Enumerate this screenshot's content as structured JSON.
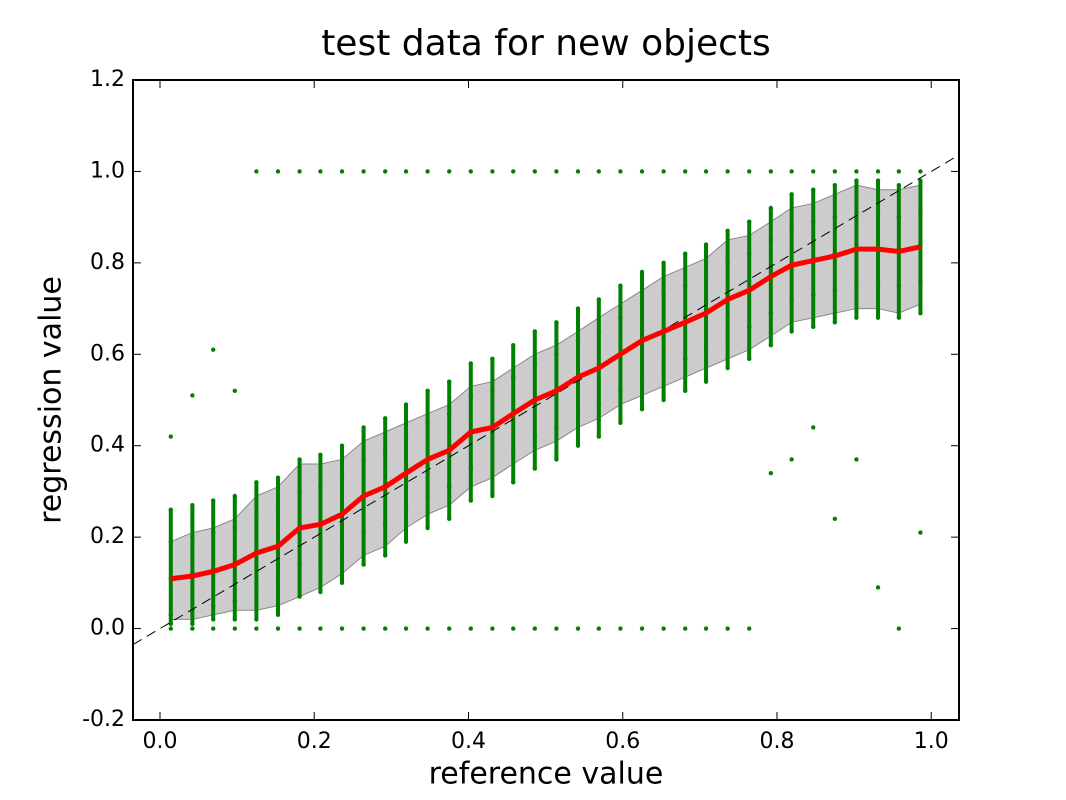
{
  "chart_data": {
    "type": "scatter",
    "title": "test data for new objects",
    "x_label": "reference value",
    "y_label": "regression value",
    "xlim": [
      -0.035,
      1.036
    ],
    "ylim": [
      -0.2,
      1.2
    ],
    "xticks": [
      {
        "value": 0.0,
        "label": "0.0"
      },
      0.2,
      0.4,
      0.6,
      0.8,
      {
        "value": 1.0,
        "label": "1.0"
      }
    ],
    "yticks": [
      -0.2,
      {
        "value": 0.0,
        "label": "0.0"
      },
      0.2,
      0.4,
      0.6,
      0.8,
      {
        "value": 1.0,
        "label": "1.0"
      },
      1.2
    ],
    "point_color": "#008000",
    "mean_color": "#ff0000",
    "band_color": "#cccccc",
    "columns": [
      {
        "x": 0.014,
        "y": [
          0,
          0.01,
          0.03,
          0.11,
          0.19,
          0.26,
          0.42
        ]
      },
      {
        "x": 0.042,
        "y": [
          0,
          0.01,
          0.04,
          0.12,
          0.2,
          0.27,
          0.51
        ]
      },
      {
        "x": 0.069,
        "y": [
          0,
          0.02,
          0.05,
          0.13,
          0.21,
          0.28,
          0.61
        ]
      },
      {
        "x": 0.097,
        "y": [
          0,
          0.02,
          0.06,
          0.14,
          0.22,
          0.29,
          0.52
        ]
      },
      {
        "x": 0.125,
        "y": [
          0,
          0.02,
          0.09,
          0.17,
          0.25,
          0.32,
          1.0
        ]
      },
      {
        "x": 0.153,
        "y": [
          0,
          0.03,
          0.1,
          0.18,
          0.26,
          0.33,
          1.0
        ]
      },
      {
        "x": 0.181,
        "y": [
          0,
          0.07,
          0.14,
          0.22,
          0.3,
          0.37,
          1.0
        ]
      },
      {
        "x": 0.208,
        "y": [
          0,
          0.08,
          0.15,
          0.23,
          0.31,
          0.38,
          1.0
        ]
      },
      {
        "x": 0.236,
        "y": [
          0,
          0.1,
          0.17,
          0.25,
          0.33,
          0.4,
          1.0
        ]
      },
      {
        "x": 0.264,
        "y": [
          0,
          0.14,
          0.21,
          0.29,
          0.37,
          0.44,
          1.0
        ]
      },
      {
        "x": 0.292,
        "y": [
          0,
          0.16,
          0.23,
          0.31,
          0.39,
          0.46,
          1.0
        ]
      },
      {
        "x": 0.319,
        "y": [
          0,
          0.19,
          0.26,
          0.34,
          0.42,
          0.49,
          1.0
        ]
      },
      {
        "x": 0.347,
        "y": [
          0,
          0.22,
          0.29,
          0.37,
          0.45,
          0.52,
          1.0
        ]
      },
      {
        "x": 0.375,
        "y": [
          0,
          0.24,
          0.31,
          0.39,
          0.47,
          0.54,
          1.0
        ]
      },
      {
        "x": 0.403,
        "y": [
          0,
          0.28,
          0.35,
          0.43,
          0.51,
          0.58,
          1.0
        ]
      },
      {
        "x": 0.431,
        "y": [
          0,
          0.29,
          0.36,
          0.44,
          0.52,
          0.59,
          1.0
        ]
      },
      {
        "x": 0.458,
        "y": [
          0,
          0.32,
          0.39,
          0.47,
          0.55,
          0.62,
          1.0
        ]
      },
      {
        "x": 0.486,
        "y": [
          0,
          0.35,
          0.42,
          0.5,
          0.58,
          0.65,
          1.0
        ]
      },
      {
        "x": 0.514,
        "y": [
          0,
          0.37,
          0.44,
          0.52,
          0.6,
          0.67,
          1.0
        ]
      },
      {
        "x": 0.542,
        "y": [
          0,
          0.4,
          0.47,
          0.55,
          0.63,
          0.7,
          1.0
        ]
      },
      {
        "x": 0.569,
        "y": [
          0,
          0.42,
          0.49,
          0.57,
          0.65,
          0.72,
          1.0
        ]
      },
      {
        "x": 0.597,
        "y": [
          0,
          0.45,
          0.52,
          0.6,
          0.68,
          0.75,
          1.0
        ]
      },
      {
        "x": 0.625,
        "y": [
          0,
          0.48,
          0.55,
          0.63,
          0.71,
          0.78,
          1.0
        ]
      },
      {
        "x": 0.653,
        "y": [
          0,
          0.5,
          0.57,
          0.65,
          0.73,
          0.8,
          1.0
        ]
      },
      {
        "x": 0.681,
        "y": [
          0,
          0.52,
          0.59,
          0.67,
          0.75,
          0.82,
          1.0
        ]
      },
      {
        "x": 0.708,
        "y": [
          0,
          0.54,
          0.61,
          0.69,
          0.77,
          0.84,
          1.0
        ]
      },
      {
        "x": 0.736,
        "y": [
          0,
          0.57,
          0.64,
          0.72,
          0.8,
          0.87,
          1.0
        ]
      },
      {
        "x": 0.764,
        "y": [
          0,
          0.59,
          0.66,
          0.74,
          0.82,
          0.89,
          1.0
        ]
      },
      {
        "x": 0.792,
        "y": [
          0.34,
          0.62,
          0.69,
          0.77,
          0.85,
          0.92,
          1.0
        ]
      },
      {
        "x": 0.819,
        "y": [
          0.37,
          0.65,
          0.72,
          0.8,
          0.88,
          0.95,
          1.0
        ]
      },
      {
        "x": 0.847,
        "y": [
          0.44,
          0.66,
          0.73,
          0.81,
          0.89,
          0.96,
          1.0
        ]
      },
      {
        "x": 0.875,
        "y": [
          0.24,
          0.67,
          0.74,
          0.82,
          0.9,
          0.97,
          1.0
        ]
      },
      {
        "x": 0.903,
        "y": [
          0.37,
          0.68,
          0.75,
          0.83,
          0.91,
          0.98,
          1.0
        ]
      },
      {
        "x": 0.931,
        "y": [
          0.09,
          0.68,
          0.75,
          0.83,
          0.91,
          0.98,
          1.0
        ]
      },
      {
        "x": 0.958,
        "y": [
          0,
          0.68,
          0.75,
          0.83,
          0.9,
          0.97,
          1.0
        ]
      },
      {
        "x": 0.986,
        "y": [
          0.21,
          0.69,
          0.76,
          0.84,
          0.91,
          0.98,
          1.0
        ]
      }
    ],
    "mean": {
      "x": [
        0.014,
        0.042,
        0.069,
        0.097,
        0.125,
        0.153,
        0.181,
        0.208,
        0.236,
        0.264,
        0.292,
        0.319,
        0.347,
        0.375,
        0.403,
        0.431,
        0.458,
        0.486,
        0.514,
        0.542,
        0.569,
        0.597,
        0.625,
        0.653,
        0.681,
        0.708,
        0.736,
        0.764,
        0.792,
        0.819,
        0.847,
        0.875,
        0.903,
        0.931,
        0.958,
        0.986
      ],
      "values": [
        0.109,
        0.115,
        0.125,
        0.14,
        0.165,
        0.18,
        0.22,
        0.228,
        0.25,
        0.29,
        0.31,
        0.34,
        0.37,
        0.39,
        0.43,
        0.44,
        0.47,
        0.5,
        0.52,
        0.55,
        0.57,
        0.6,
        0.63,
        0.65,
        0.67,
        0.69,
        0.72,
        0.74,
        0.77,
        0.795,
        0.805,
        0.815,
        0.83,
        0.83,
        0.825,
        0.835
      ],
      "upper": [
        0.19,
        0.21,
        0.22,
        0.24,
        0.29,
        0.31,
        0.36,
        0.36,
        0.37,
        0.41,
        0.43,
        0.45,
        0.47,
        0.49,
        0.53,
        0.54,
        0.57,
        0.6,
        0.62,
        0.65,
        0.68,
        0.71,
        0.74,
        0.77,
        0.79,
        0.81,
        0.85,
        0.86,
        0.89,
        0.92,
        0.93,
        0.95,
        0.97,
        0.96,
        0.96,
        0.97
      ],
      "lower": [
        0.02,
        0.02,
        0.03,
        0.04,
        0.04,
        0.05,
        0.07,
        0.09,
        0.12,
        0.16,
        0.18,
        0.22,
        0.25,
        0.27,
        0.31,
        0.33,
        0.36,
        0.39,
        0.41,
        0.44,
        0.46,
        0.49,
        0.51,
        0.53,
        0.55,
        0.57,
        0.59,
        0.61,
        0.64,
        0.67,
        0.68,
        0.69,
        0.7,
        0.7,
        0.69,
        0.71
      ]
    },
    "reference_line": {
      "x": [
        -0.035,
        1.036
      ],
      "values": [
        -0.035,
        1.036
      ]
    }
  }
}
